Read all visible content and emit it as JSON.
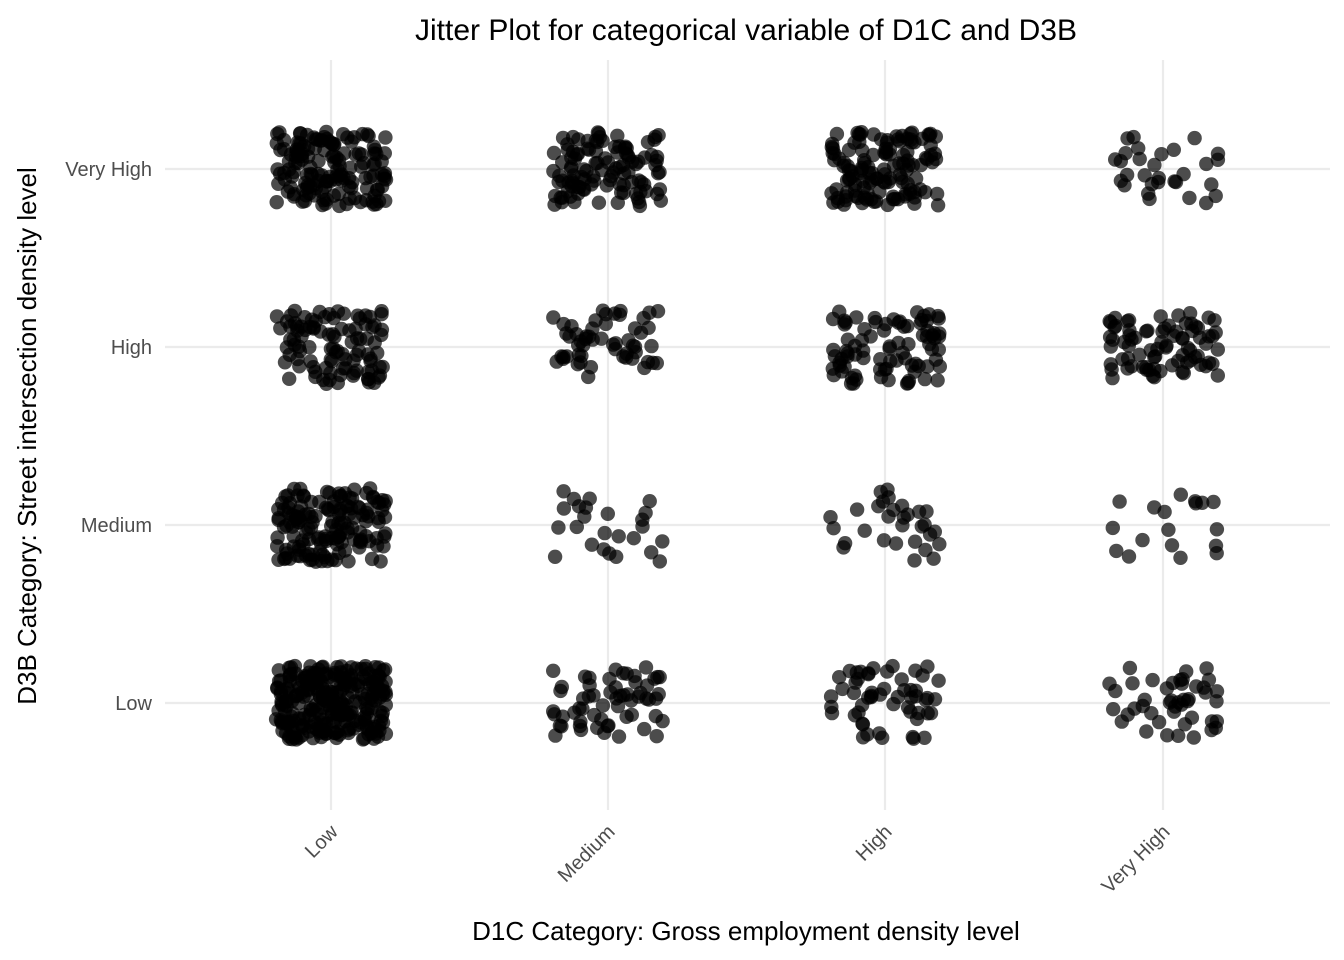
{
  "chart_data": {
    "type": "scatter",
    "subtype": "jitter",
    "title": "Jitter Plot for categorical variable of D1C and D3B",
    "xlabel": "D1C Category: Gross employment density level",
    "ylabel": "D3B Category: Street intersection density level",
    "x_categories": [
      "Low",
      "Medium",
      "High",
      "Very High"
    ],
    "y_categories": [
      "Low",
      "Medium",
      "High",
      "Very High"
    ],
    "x_tick_rotation": 45,
    "grid": true,
    "legend": "none",
    "point_color": "#000000",
    "point_alpha": 0.7,
    "jitter": 0.2,
    "cell_counts": [
      [
        260,
        60,
        55,
        45
      ],
      [
        150,
        25,
        30,
        18
      ],
      [
        100,
        55,
        85,
        80
      ],
      [
        150,
        110,
        130,
        30
      ]
    ],
    "cell_counts_note": ""
  }
}
